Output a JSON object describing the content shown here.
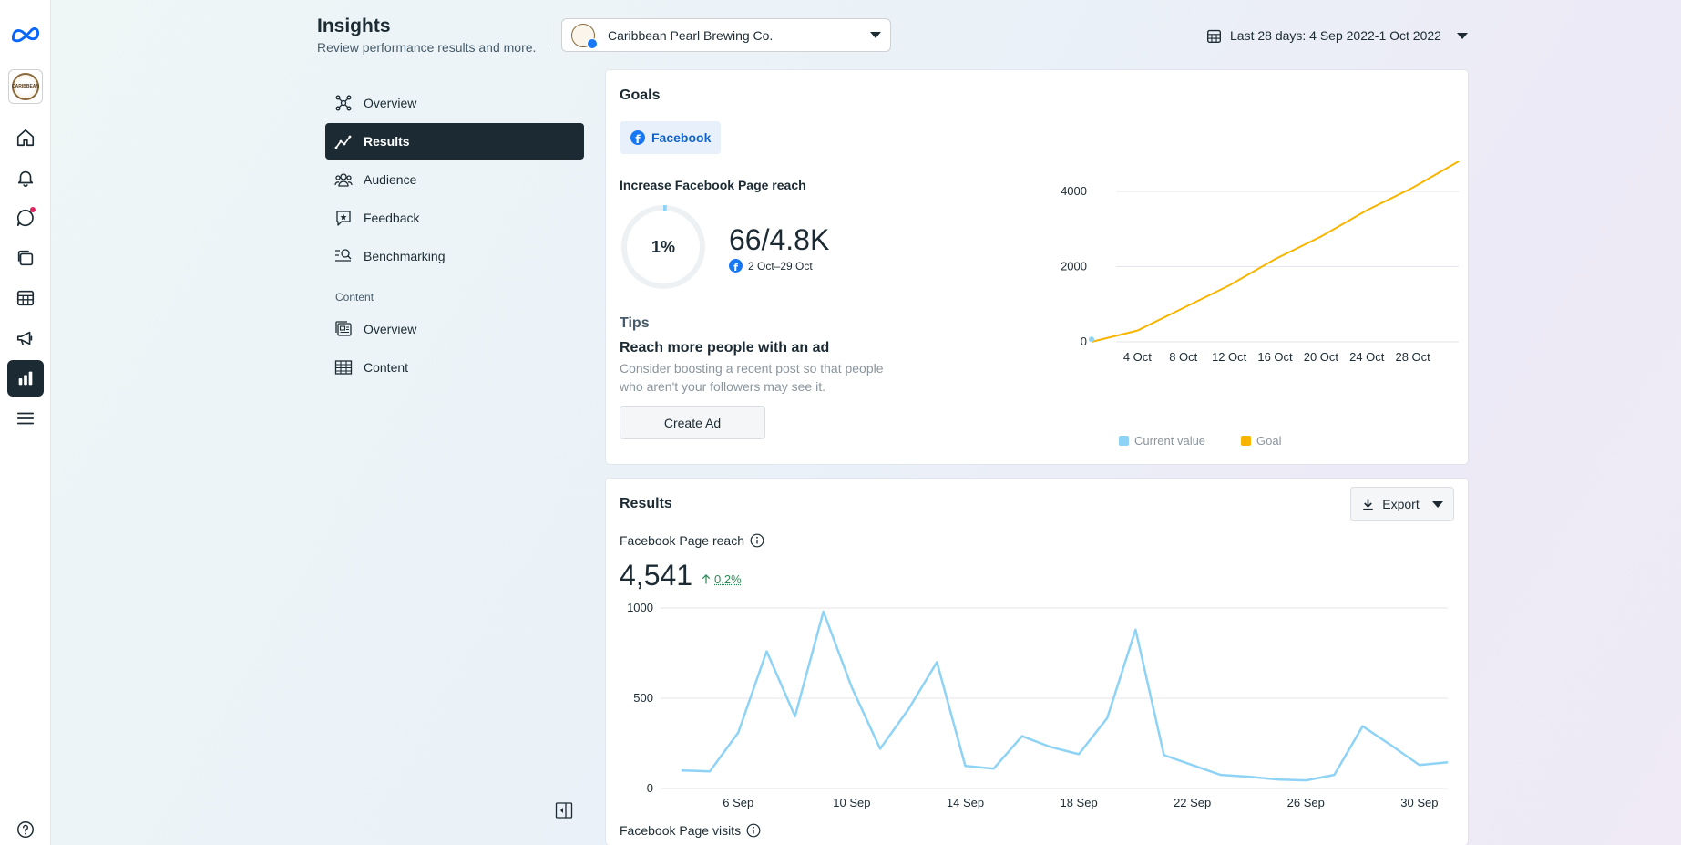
{
  "rail": {
    "items": [
      {
        "icon": "home-icon"
      },
      {
        "icon": "bell-icon"
      },
      {
        "icon": "chat-bubble-icon"
      },
      {
        "icon": "content-stack-icon"
      },
      {
        "icon": "planner-grid-icon"
      },
      {
        "icon": "megaphone-icon"
      },
      {
        "icon": "bar-chart-icon"
      },
      {
        "icon": "menu-icon"
      },
      {
        "icon": "help-icon"
      }
    ],
    "profile_text": "CARIBBEAN"
  },
  "header": {
    "title": "Insights",
    "subtitle": "Review performance results and more.",
    "account_name": "Caribbean Pearl Brewing Co.",
    "date_range": "Last 28 days: 4 Sep 2022-1 Oct 2022"
  },
  "nav": {
    "items": [
      {
        "label": "Overview",
        "icon": "network-icon"
      },
      {
        "label": "Results",
        "icon": "trend-line-icon"
      },
      {
        "label": "Audience",
        "icon": "people-icon"
      },
      {
        "label": "Feedback",
        "icon": "star-bubble-icon"
      },
      {
        "label": "Benchmarking",
        "icon": "search-bars-icon"
      }
    ],
    "section_label": "Content",
    "content_items": [
      {
        "label": "Overview",
        "icon": "content-overview-icon"
      },
      {
        "label": "Content",
        "icon": "table-icon"
      }
    ]
  },
  "goals": {
    "title": "Goals",
    "platform_tab": "Facebook",
    "goal_name": "Increase Facebook Page reach",
    "progress_percent_label": "1%",
    "progress_fraction": 0.014,
    "ratio": "66/4.8K",
    "range": "2 Oct–29 Oct",
    "tips_heading": "Tips",
    "tip_title": "Reach more people with an ad",
    "tip_body": "Consider boosting a recent post so that people who aren't your followers may see it.",
    "cta": "Create Ad",
    "legend": [
      "Current value",
      "Goal"
    ],
    "colors": {
      "current": "#8ed3f5",
      "goal": "#f7b500"
    }
  },
  "results": {
    "title": "Results",
    "export_label": "Export",
    "metric_label": "Facebook Page reach",
    "metric_value": "4,541",
    "metric_change": "0.2%",
    "next_metric_label": "Facebook Page visits",
    "line_color": "#8ed3f5"
  },
  "chart_data": [
    {
      "type": "line",
      "title": "",
      "x": [
        "2 Oct",
        "4 Oct",
        "8 Oct",
        "12 Oct",
        "16 Oct",
        "20 Oct",
        "24 Oct",
        "28 Oct",
        "30 Oct"
      ],
      "x_ticks": [
        "4 Oct",
        "8 Oct",
        "12 Oct",
        "16 Oct",
        "20 Oct",
        "24 Oct",
        "28 Oct"
      ],
      "series": [
        {
          "name": "Current value",
          "values": [
            66,
            null,
            null,
            null,
            null,
            null,
            null,
            null,
            null
          ]
        },
        {
          "name": "Goal",
          "values": [
            0,
            300,
            900,
            1500,
            2200,
            2800,
            3500,
            4100,
            4800
          ]
        }
      ],
      "ylim": [
        0,
        4800
      ],
      "y_ticks": [
        0,
        2000,
        4000
      ],
      "grid": true,
      "legend": "bottom"
    },
    {
      "type": "line",
      "title": "",
      "x": [
        "4 Sep",
        "5 Sep",
        "6 Sep",
        "7 Sep",
        "8 Sep",
        "9 Sep",
        "10 Sep",
        "11 Sep",
        "12 Sep",
        "13 Sep",
        "14 Sep",
        "15 Sep",
        "16 Sep",
        "17 Sep",
        "18 Sep",
        "19 Sep",
        "20 Sep",
        "21 Sep",
        "22 Sep",
        "23 Sep",
        "24 Sep",
        "25 Sep",
        "26 Sep",
        "27 Sep",
        "28 Sep",
        "29 Sep",
        "30 Sep",
        "1 Oct"
      ],
      "x_ticks": [
        "6 Sep",
        "10 Sep",
        "14 Sep",
        "18 Sep",
        "22 Sep",
        "26 Sep",
        "30 Sep"
      ],
      "series": [
        {
          "name": "Facebook Page reach",
          "values": [
            100,
            95,
            310,
            760,
            400,
            980,
            560,
            220,
            440,
            700,
            125,
            110,
            290,
            230,
            190,
            390,
            880,
            185,
            130,
            75,
            65,
            50,
            45,
            75,
            345,
            240,
            130,
            145
          ]
        }
      ],
      "ylim": [
        0,
        1000
      ],
      "y_ticks": [
        0,
        500,
        1000
      ],
      "grid": true
    }
  ]
}
